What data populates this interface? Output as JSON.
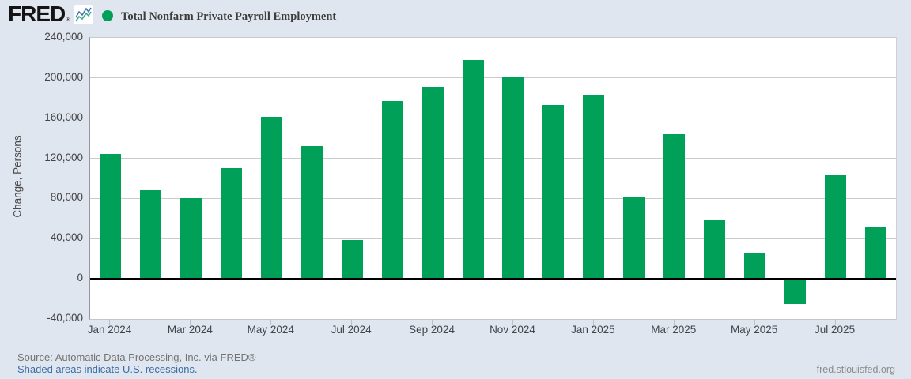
{
  "header": {
    "logo_text": "FRED",
    "logo_reg": "®"
  },
  "chart_data": {
    "type": "bar",
    "title": "Total Nonfarm Private Payroll Employment",
    "ylabel": "Change, Persons",
    "ylim": [
      -40000,
      240000
    ],
    "grid": true,
    "legend_position": "top-left",
    "ytick_values": [
      240000,
      200000,
      160000,
      120000,
      80000,
      40000,
      0,
      -40000
    ],
    "ytick_labels": [
      "240,000",
      "200,000",
      "160,000",
      "120,000",
      "80,000",
      "40,000",
      "0",
      "-40,000"
    ],
    "categories": [
      "Jan 2024",
      "Feb 2024",
      "Mar 2024",
      "Apr 2024",
      "May 2024",
      "Jun 2024",
      "Jul 2024",
      "Aug 2024",
      "Sep 2024",
      "Oct 2024",
      "Nov 2024",
      "Dec 2024",
      "Jan 2025",
      "Feb 2025",
      "Mar 2025",
      "Apr 2025",
      "May 2025",
      "Jun 2025",
      "Jul 2025",
      "Aug 2025"
    ],
    "values": [
      124000,
      88000,
      80000,
      110000,
      161000,
      132000,
      39000,
      177000,
      191000,
      218000,
      201000,
      173000,
      183000,
      81000,
      144000,
      58000,
      26000,
      -25000,
      103000,
      52000
    ],
    "xtick_labels": [
      "Jan 2024",
      "Mar 2024",
      "May 2024",
      "Jul 2024",
      "Sep 2024",
      "Nov 2024",
      "Jan 2025",
      "Mar 2025",
      "May 2025",
      "Jul 2025"
    ]
  },
  "footer": {
    "source": "Source: Automatic Data Processing, Inc. via FRED®",
    "recession_note": "Shaded areas indicate U.S. recessions.",
    "site": "fred.stlouisfed.org"
  },
  "colors": {
    "bar": "#00a059",
    "legend_dot": "#00a059",
    "background": "#e0e6ef",
    "gridline": "#cbcbcb",
    "zero_line": "#000000",
    "link": "#3a6ea5",
    "logo_line_blue": "#4272a8",
    "logo_line_green": "#3fa68f"
  }
}
